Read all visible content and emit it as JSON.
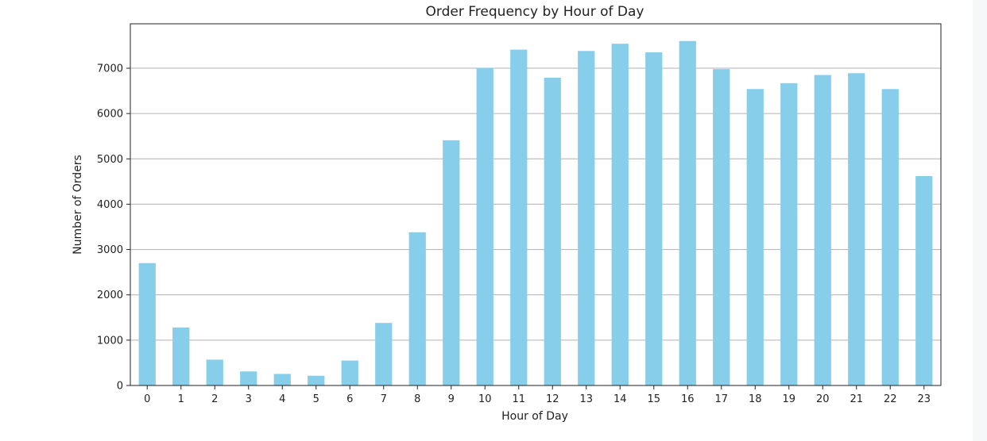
{
  "chart_data": {
    "type": "bar",
    "title": "Order Frequency by Hour of Day",
    "xlabel": "Hour of Day",
    "ylabel": "Number of Orders",
    "categories": [
      "0",
      "1",
      "2",
      "3",
      "4",
      "5",
      "6",
      "7",
      "8",
      "9",
      "10",
      "11",
      "12",
      "13",
      "14",
      "15",
      "16",
      "17",
      "18",
      "19",
      "20",
      "21",
      "22",
      "23"
    ],
    "values": [
      2700,
      1280,
      570,
      310,
      255,
      215,
      550,
      1380,
      3380,
      5410,
      7010,
      7410,
      6790,
      7380,
      7540,
      7350,
      7600,
      6980,
      6540,
      6670,
      6850,
      6890,
      6540,
      4620
    ],
    "ylim": [
      0,
      7980
    ],
    "yticks": [
      0,
      1000,
      2000,
      3000,
      4000,
      5000,
      6000,
      7000
    ],
    "grid": "y",
    "bar_color": "#87ceeb",
    "legend": "none"
  }
}
